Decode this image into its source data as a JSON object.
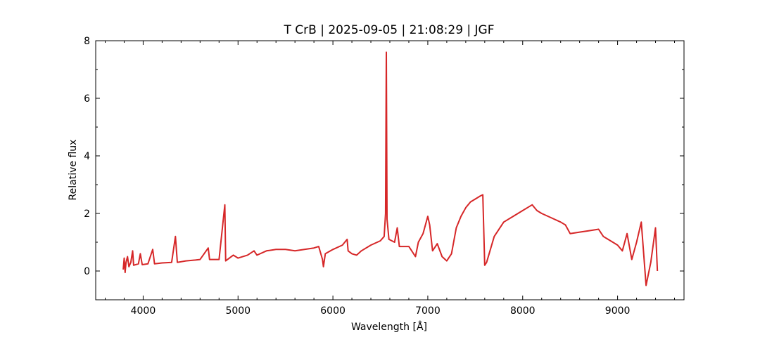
{
  "chart_data": {
    "type": "line",
    "title": "T CrB | 2025-09-05 | 21:08:29 | JGF",
    "xlabel": "Wavelength [Å]",
    "ylabel": "Relative flux",
    "xlim": [
      3500,
      9700
    ],
    "ylim": [
      -1,
      8
    ],
    "xticks": [
      4000,
      5000,
      6000,
      7000,
      8000,
      9000
    ],
    "yticks": [
      0,
      2,
      4,
      6,
      8
    ],
    "grid": false,
    "series": [
      {
        "color": "#d62728",
        "points": [
          [
            3790,
            0.05
          ],
          [
            3800,
            0.45
          ],
          [
            3810,
            -0.05
          ],
          [
            3820,
            0.3
          ],
          [
            3835,
            0.5
          ],
          [
            3850,
            0.15
          ],
          [
            3870,
            0.3
          ],
          [
            3889,
            0.7
          ],
          [
            3900,
            0.2
          ],
          [
            3950,
            0.25
          ],
          [
            3970,
            0.6
          ],
          [
            3990,
            0.22
          ],
          [
            4050,
            0.25
          ],
          [
            4101,
            0.75
          ],
          [
            4120,
            0.25
          ],
          [
            4200,
            0.28
          ],
          [
            4300,
            0.3
          ],
          [
            4340,
            1.2
          ],
          [
            4360,
            0.3
          ],
          [
            4450,
            0.35
          ],
          [
            4550,
            0.38
          ],
          [
            4600,
            0.4
          ],
          [
            4686,
            0.8
          ],
          [
            4700,
            0.4
          ],
          [
            4800,
            0.4
          ],
          [
            4861,
            2.3
          ],
          [
            4870,
            0.35
          ],
          [
            4950,
            0.55
          ],
          [
            5000,
            0.45
          ],
          [
            5100,
            0.55
          ],
          [
            5169,
            0.7
          ],
          [
            5200,
            0.55
          ],
          [
            5300,
            0.7
          ],
          [
            5400,
            0.75
          ],
          [
            5500,
            0.75
          ],
          [
            5600,
            0.7
          ],
          [
            5700,
            0.75
          ],
          [
            5800,
            0.8
          ],
          [
            5850,
            0.85
          ],
          [
            5890,
            0.4
          ],
          [
            5900,
            0.15
          ],
          [
            5920,
            0.6
          ],
          [
            6000,
            0.75
          ],
          [
            6100,
            0.9
          ],
          [
            6150,
            1.1
          ],
          [
            6160,
            0.7
          ],
          [
            6200,
            0.6
          ],
          [
            6250,
            0.55
          ],
          [
            6300,
            0.7
          ],
          [
            6400,
            0.9
          ],
          [
            6500,
            1.05
          ],
          [
            6540,
            1.2
          ],
          [
            6555,
            2.0
          ],
          [
            6563,
            7.6
          ],
          [
            6570,
            1.8
          ],
          [
            6590,
            1.1
          ],
          [
            6650,
            1.0
          ],
          [
            6678,
            1.5
          ],
          [
            6700,
            0.85
          ],
          [
            6800,
            0.85
          ],
          [
            6870,
            0.5
          ],
          [
            6900,
            1.0
          ],
          [
            6950,
            1.3
          ],
          [
            7000,
            1.9
          ],
          [
            7020,
            1.6
          ],
          [
            7050,
            0.7
          ],
          [
            7100,
            0.95
          ],
          [
            7150,
            0.5
          ],
          [
            7200,
            0.35
          ],
          [
            7250,
            0.6
          ],
          [
            7300,
            1.5
          ],
          [
            7350,
            1.9
          ],
          [
            7400,
            2.2
          ],
          [
            7450,
            2.4
          ],
          [
            7500,
            2.5
          ],
          [
            7550,
            2.6
          ],
          [
            7580,
            2.65
          ],
          [
            7600,
            0.2
          ],
          [
            7620,
            0.3
          ],
          [
            7700,
            1.2
          ],
          [
            7800,
            1.7
          ],
          [
            7900,
            1.9
          ],
          [
            8000,
            2.1
          ],
          [
            8050,
            2.2
          ],
          [
            8100,
            2.3
          ],
          [
            8150,
            2.1
          ],
          [
            8200,
            2.0
          ],
          [
            8300,
            1.85
          ],
          [
            8400,
            1.7
          ],
          [
            8450,
            1.6
          ],
          [
            8500,
            1.3
          ],
          [
            8600,
            1.35
          ],
          [
            8700,
            1.4
          ],
          [
            8800,
            1.45
          ],
          [
            8850,
            1.2
          ],
          [
            8900,
            1.1
          ],
          [
            8950,
            1.0
          ],
          [
            9000,
            0.9
          ],
          [
            9050,
            0.7
          ],
          [
            9100,
            1.3
          ],
          [
            9150,
            0.4
          ],
          [
            9200,
            1.0
          ],
          [
            9250,
            1.7
          ],
          [
            9300,
            -0.5
          ],
          [
            9350,
            0.3
          ],
          [
            9400,
            1.5
          ],
          [
            9420,
            0.0
          ]
        ]
      }
    ]
  }
}
